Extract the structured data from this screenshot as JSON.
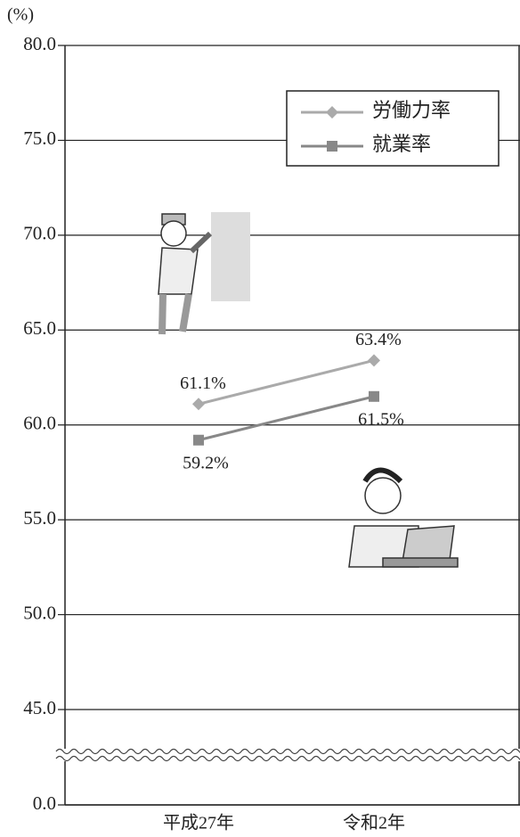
{
  "chart_data": {
    "type": "line",
    "y_label": "(%)",
    "categories": [
      "平成27年",
      "令和2年"
    ],
    "series": [
      {
        "name": "労働力率",
        "color": "#aaaaaa",
        "marker": "diamond",
        "values": [
          61.1,
          63.4
        ],
        "value_labels": [
          "61.1%",
          "63.4%"
        ]
      },
      {
        "name": "就業率",
        "color": "#888888",
        "marker": "square",
        "values": [
          59.2,
          61.5
        ],
        "value_labels": [
          "59.2%",
          "61.5%"
        ]
      }
    ],
    "ylim": [
      0,
      80
    ],
    "y_break": [
      0,
      45
    ],
    "yticks": [
      {
        "value": 0,
        "label": "0.0"
      },
      {
        "value": 45,
        "label": "45.0"
      },
      {
        "value": 50,
        "label": "50.0"
      },
      {
        "value": 55,
        "label": "55.0"
      },
      {
        "value": 60,
        "label": "60.0"
      },
      {
        "value": 65,
        "label": "65.0"
      },
      {
        "value": 70,
        "label": "70.0"
      },
      {
        "value": 75,
        "label": "75.0"
      },
      {
        "value": 80,
        "label": "80.0"
      }
    ],
    "grid": true,
    "legend": "upper right"
  }
}
